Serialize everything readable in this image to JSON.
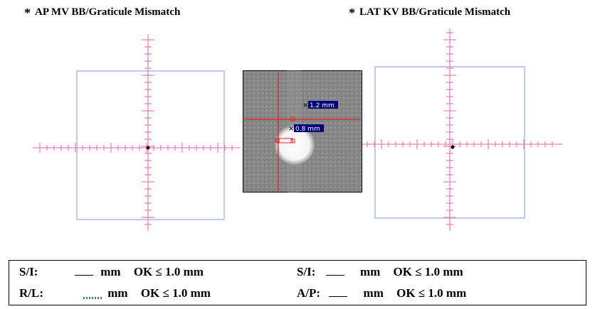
{
  "header": {
    "left_title": "AP MV BB/Graticule Mismatch",
    "right_title": "LAT KV  BB/Graticule Mismatch",
    "asterisk": "*"
  },
  "zoom_image": {
    "label_top": "1.2 mm",
    "label_bottom": "0.8 mm"
  },
  "table": {
    "row1_left_label": "S/I:",
    "row1_left_blank": "__",
    "row1_left_unit": "mm",
    "row1_left_tol": "OK ≤ 1.0 mm",
    "row1_right_label": "S/I:",
    "row1_right_blank": "__",
    "row1_right_unit": "mm",
    "row1_right_tol": "OK ≤ 1.0 mm",
    "row2_left_label": "R/L:",
    "row2_left_blank": "__",
    "row2_left_unit": "mm",
    "row2_left_tol": "OK ≤ 1.0 mm",
    "row2_right_label": "A/P:",
    "row2_right_blank": "__",
    "row2_right_unit": "mm",
    "row2_right_tol": "OK ≤ 1.0 mm"
  },
  "colors": {
    "graticule": "#f27fb0",
    "field_box": "#a9b8ee",
    "crosshair": "#e02020",
    "label_bg": "#00007f"
  }
}
